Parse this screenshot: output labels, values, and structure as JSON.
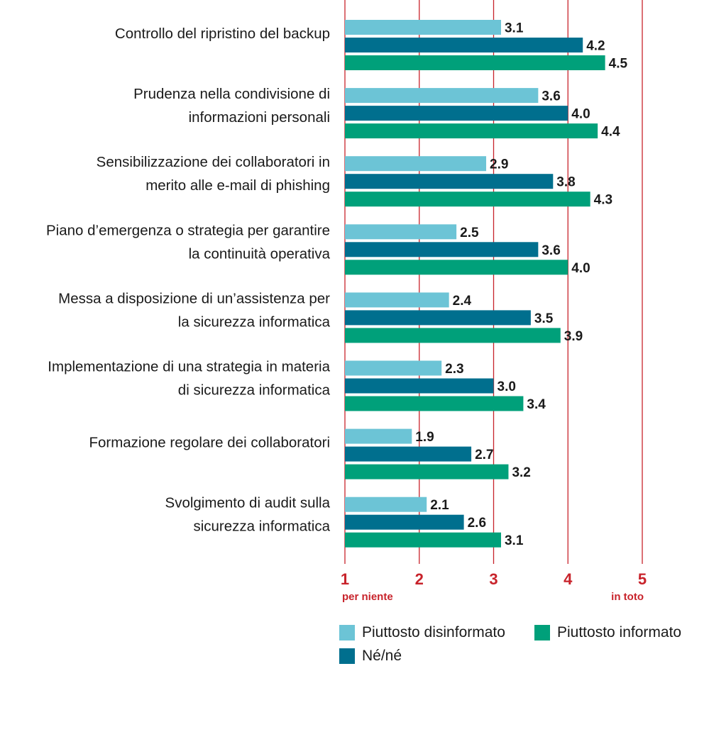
{
  "chart_data": {
    "type": "bar",
    "orientation": "horizontal",
    "categories": [
      [
        "Controllo del ripristino del backup"
      ],
      [
        "Prudenza nella condivisione di",
        "informazioni personali"
      ],
      [
        "Sensibilizzazione dei collaboratori in",
        "merito alle e-mail di phishing"
      ],
      [
        "Piano d’emergenza o strategia per garantire",
        "la continuità operativa"
      ],
      [
        "Messa a disposizione di un’assistenza per",
        "la sicurezza informatica"
      ],
      [
        "Implementazione di una strategia in materia",
        "di sicurezza informatica"
      ],
      [
        "Formazione regolare dei collaboratori"
      ],
      [
        "Svolgimento di audit sulla",
        "sicurezza informatica"
      ]
    ],
    "series": [
      {
        "name": "Piuttosto disinformato",
        "color": "#6cc4d6",
        "values": [
          3.1,
          3.6,
          2.9,
          2.5,
          2.4,
          2.3,
          1.9,
          2.1
        ],
        "labels": [
          "3.1",
          "3.6",
          "2.9",
          "2.5",
          "2.4",
          "2.3",
          "1.9",
          "2.1"
        ]
      },
      {
        "name": "Né/né",
        "color": "#006f8e",
        "values": [
          4.2,
          4.0,
          3.8,
          3.6,
          3.5,
          3.0,
          2.7,
          2.6
        ],
        "labels": [
          "4.2",
          "4.0",
          "3.8",
          "3.6",
          "3.5",
          "3.0",
          "2.7",
          "2.6"
        ]
      },
      {
        "name": "Piuttosto informato",
        "color": "#00a07a",
        "values": [
          4.5,
          4.4,
          4.3,
          4.0,
          3.9,
          3.4,
          3.2,
          3.1
        ],
        "labels": [
          "4.5",
          "4.4",
          "4.3",
          "4.0",
          "3.9",
          "3.4",
          "3.2",
          "3.1"
        ]
      }
    ],
    "xlim": [
      1,
      5
    ],
    "ticks": [
      "1",
      "2",
      "3",
      "4",
      "5"
    ],
    "tick_sublabels": {
      "min": "per niente",
      "max": "in toto"
    },
    "grid": true,
    "grid_color": "#c8232b",
    "legend_position": "bottom",
    "legend_rows": [
      [
        "Piuttosto disinformato",
        "Piuttosto informato"
      ],
      [
        "Né/né"
      ]
    ]
  }
}
